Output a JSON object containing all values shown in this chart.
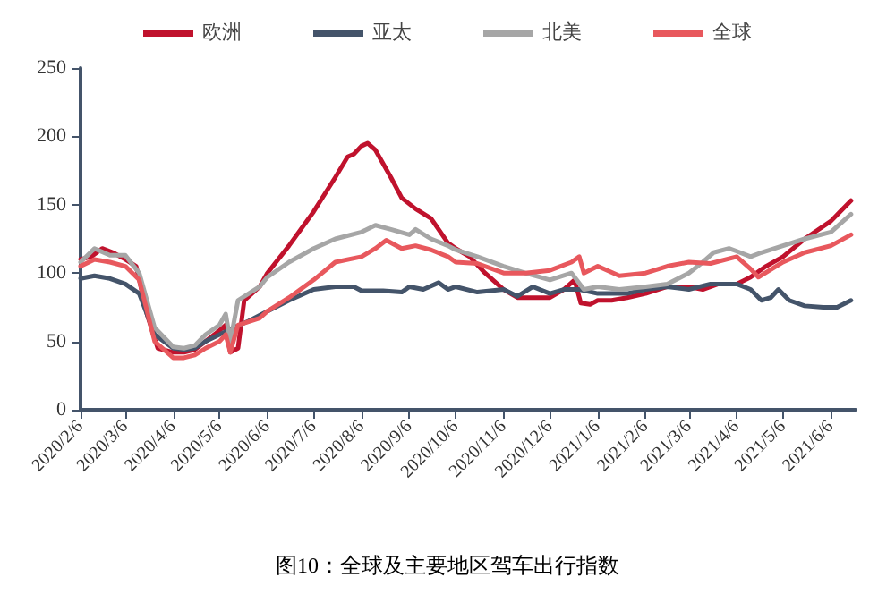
{
  "chart_data": {
    "type": "line",
    "title": "图10：全球及主要地区驾车出行指数",
    "xlim": [
      "2020-02-06",
      "2021-06-22"
    ],
    "xticks": [
      {
        "value": "2020-02-06",
        "label": "2020/2/6"
      },
      {
        "value": "2020-03-06",
        "label": "2020/3/6"
      },
      {
        "value": "2020-04-06",
        "label": "2020/4/6"
      },
      {
        "value": "2020-05-06",
        "label": "2020/5/6"
      },
      {
        "value": "2020-06-06",
        "label": "2020/6/6"
      },
      {
        "value": "2020-07-06",
        "label": "2020/7/6"
      },
      {
        "value": "2020-08-06",
        "label": "2020/8/6"
      },
      {
        "value": "2020-09-06",
        "label": "2020/9/6"
      },
      {
        "value": "2020-10-06",
        "label": "2020/10/6"
      },
      {
        "value": "2020-11-06",
        "label": "2020/11/6"
      },
      {
        "value": "2020-12-06",
        "label": "2020/12/6"
      },
      {
        "value": "2021-01-06",
        "label": "2021/1/6"
      },
      {
        "value": "2021-02-06",
        "label": "2021/2/6"
      },
      {
        "value": "2021-03-06",
        "label": "2021/3/6"
      },
      {
        "value": "2021-04-06",
        "label": "2021/4/6"
      },
      {
        "value": "2021-05-06",
        "label": "2021/5/6"
      },
      {
        "value": "2021-06-06",
        "label": "2021/6/6"
      }
    ],
    "ylim": [
      0,
      250
    ],
    "yticks": [
      0,
      50,
      100,
      150,
      200,
      250
    ],
    "grid": false,
    "legend": "top",
    "marker": "none",
    "series": [
      {
        "name": "欧洲",
        "color": "#c0122d",
        "x": [
          "2020-02-06",
          "2020-02-13",
          "2020-02-20",
          "2020-02-27",
          "2020-03-06",
          "2020-03-13",
          "2020-03-20",
          "2020-03-27",
          "2020-04-06",
          "2020-04-13",
          "2020-04-20",
          "2020-04-27",
          "2020-05-06",
          "2020-05-10",
          "2020-05-13",
          "2020-05-18",
          "2020-05-22",
          "2020-06-01",
          "2020-06-06",
          "2020-06-20",
          "2020-07-06",
          "2020-07-20",
          "2020-07-28",
          "2020-08-01",
          "2020-08-06",
          "2020-08-10",
          "2020-08-15",
          "2020-08-25",
          "2020-09-01",
          "2020-09-10",
          "2020-09-20",
          "2020-10-01",
          "2020-10-06",
          "2020-10-15",
          "2020-10-25",
          "2020-11-06",
          "2020-11-15",
          "2020-11-25",
          "2020-12-06",
          "2020-12-15",
          "2020-12-22",
          "2020-12-26",
          "2021-01-01",
          "2021-01-06",
          "2021-01-15",
          "2021-01-25",
          "2021-02-06",
          "2021-02-20",
          "2021-03-06",
          "2021-03-15",
          "2021-03-25",
          "2021-04-06",
          "2021-04-15",
          "2021-04-25",
          "2021-05-06",
          "2021-05-20",
          "2021-06-06",
          "2021-06-12",
          "2021-06-19"
        ],
        "values": [
          110,
          112,
          118,
          115,
          110,
          105,
          70,
          45,
          42,
          42,
          44,
          50,
          58,
          62,
          42,
          45,
          80,
          90,
          100,
          120,
          145,
          170,
          185,
          187,
          193,
          195,
          190,
          170,
          155,
          147,
          140,
          122,
          118,
          112,
          100,
          88,
          82,
          82,
          82,
          88,
          95,
          78,
          77,
          80,
          80,
          82,
          85,
          90,
          90,
          88,
          92,
          92,
          97,
          105,
          112,
          125,
          138,
          145,
          153
        ]
      },
      {
        "name": "亚太",
        "color": "#44546a",
        "x": [
          "2020-02-06",
          "2020-02-15",
          "2020-02-25",
          "2020-03-06",
          "2020-03-15",
          "2020-03-25",
          "2020-04-06",
          "2020-04-13",
          "2020-04-20",
          "2020-04-27",
          "2020-05-06",
          "2020-05-15",
          "2020-05-25",
          "2020-06-06",
          "2020-06-20",
          "2020-07-06",
          "2020-07-20",
          "2020-08-01",
          "2020-08-06",
          "2020-08-20",
          "2020-09-01",
          "2020-09-06",
          "2020-09-15",
          "2020-09-25",
          "2020-10-01",
          "2020-10-06",
          "2020-10-20",
          "2020-11-06",
          "2020-11-15",
          "2020-11-25",
          "2020-12-06",
          "2020-12-15",
          "2020-12-25",
          "2021-01-06",
          "2021-01-15",
          "2021-01-25",
          "2021-02-06",
          "2021-02-20",
          "2021-03-06",
          "2021-03-20",
          "2021-04-06",
          "2021-04-15",
          "2021-04-22",
          "2021-04-28",
          "2021-05-03",
          "2021-05-10",
          "2021-05-20",
          "2021-06-01",
          "2021-06-10",
          "2021-06-19"
        ],
        "values": [
          96,
          98,
          96,
          92,
          85,
          55,
          45,
          44,
          45,
          50,
          55,
          60,
          65,
          72,
          80,
          88,
          90,
          90,
          87,
          87,
          86,
          90,
          88,
          93,
          88,
          90,
          86,
          88,
          83,
          90,
          85,
          88,
          88,
          85,
          85,
          85,
          88,
          90,
          88,
          92,
          92,
          88,
          80,
          82,
          88,
          80,
          76,
          75,
          75,
          80
        ]
      },
      {
        "name": "北美",
        "color": "#a6a6a6",
        "x": [
          "2020-02-06",
          "2020-02-15",
          "2020-02-25",
          "2020-03-06",
          "2020-03-15",
          "2020-03-25",
          "2020-04-06",
          "2020-04-13",
          "2020-04-20",
          "2020-04-27",
          "2020-05-06",
          "2020-05-10",
          "2020-05-13",
          "2020-05-18",
          "2020-06-01",
          "2020-06-06",
          "2020-06-20",
          "2020-07-06",
          "2020-07-20",
          "2020-08-06",
          "2020-08-15",
          "2020-08-25",
          "2020-09-06",
          "2020-09-10",
          "2020-09-20",
          "2020-10-01",
          "2020-10-06",
          "2020-10-20",
          "2020-11-06",
          "2020-11-20",
          "2020-12-06",
          "2020-12-20",
          "2020-12-28",
          "2021-01-06",
          "2021-01-20",
          "2021-02-06",
          "2021-02-20",
          "2021-03-06",
          "2021-03-15",
          "2021-03-22",
          "2021-04-01",
          "2021-04-06",
          "2021-04-15",
          "2021-04-22",
          "2021-05-06",
          "2021-05-20",
          "2021-06-06",
          "2021-06-19"
        ],
        "values": [
          108,
          118,
          113,
          113,
          100,
          60,
          46,
          45,
          47,
          55,
          62,
          70,
          50,
          80,
          90,
          97,
          108,
          118,
          125,
          130,
          135,
          132,
          128,
          132,
          125,
          120,
          117,
          112,
          105,
          100,
          95,
          100,
          88,
          90,
          88,
          90,
          92,
          100,
          108,
          115,
          118,
          116,
          112,
          115,
          120,
          125,
          130,
          143
        ]
      },
      {
        "name": "全球",
        "color": "#e8585d",
        "x": [
          "2020-02-06",
          "2020-02-15",
          "2020-02-25",
          "2020-03-06",
          "2020-03-15",
          "2020-03-25",
          "2020-04-06",
          "2020-04-13",
          "2020-04-20",
          "2020-04-27",
          "2020-05-06",
          "2020-05-10",
          "2020-05-13",
          "2020-05-18",
          "2020-06-01",
          "2020-06-06",
          "2020-06-20",
          "2020-07-06",
          "2020-07-20",
          "2020-08-06",
          "2020-08-15",
          "2020-08-22",
          "2020-09-01",
          "2020-09-10",
          "2020-09-20",
          "2020-10-01",
          "2020-10-06",
          "2020-10-20",
          "2020-11-06",
          "2020-11-20",
          "2020-12-06",
          "2020-12-20",
          "2020-12-25",
          "2020-12-28",
          "2021-01-06",
          "2021-01-20",
          "2021-02-06",
          "2021-02-20",
          "2021-03-06",
          "2021-03-20",
          "2021-04-06",
          "2021-04-15",
          "2021-04-20",
          "2021-05-06",
          "2021-05-20",
          "2021-06-06",
          "2021-06-19"
        ],
        "values": [
          105,
          110,
          108,
          105,
          95,
          50,
          38,
          38,
          40,
          45,
          50,
          55,
          42,
          62,
          67,
          72,
          82,
          95,
          108,
          112,
          118,
          124,
          118,
          120,
          117,
          112,
          108,
          107,
          100,
          100,
          102,
          108,
          112,
          100,
          105,
          98,
          100,
          105,
          108,
          107,
          112,
          103,
          97,
          108,
          115,
          120,
          128
        ]
      }
    ]
  }
}
